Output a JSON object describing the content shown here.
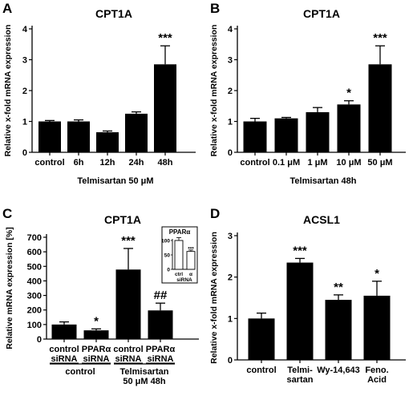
{
  "panels": [
    {
      "letter": "A",
      "chart_data": {
        "type": "bar",
        "title": "CPT1A",
        "ylabel": "Relative x-fold mRNA expression",
        "xlabel": "Telmisartan 50 μM",
        "ylim": [
          0,
          4
        ],
        "yticks": [
          "0",
          "1",
          "2",
          "3",
          "4"
        ],
        "categories": [
          "control",
          "6h",
          "12h",
          "24h",
          "48h"
        ],
        "values": [
          1.0,
          1.0,
          0.65,
          1.25,
          2.85
        ],
        "errors": [
          0.03,
          0.05,
          0.04,
          0.06,
          0.6
        ],
        "annotations": [
          "",
          "",
          "",
          "",
          "***"
        ]
      }
    },
    {
      "letter": "B",
      "chart_data": {
        "type": "bar",
        "title": "CPT1A",
        "ylabel": "Relative x-fold mRNA expression",
        "xlabel": "Telmisartan 48h",
        "ylim": [
          0,
          4
        ],
        "yticks": [
          "0",
          "1",
          "2",
          "3",
          "4"
        ],
        "categories": [
          "control",
          "0.1 μM",
          "1 μM",
          "10 μM",
          "50 μM"
        ],
        "values": [
          1.0,
          1.1,
          1.3,
          1.55,
          2.85
        ],
        "errors": [
          0.1,
          0.03,
          0.15,
          0.12,
          0.6
        ],
        "annotations": [
          "",
          "",
          "",
          "*",
          "***"
        ]
      }
    },
    {
      "letter": "C",
      "chart_data": {
        "type": "bar",
        "title": "CPT1A",
        "ylabel": "Relative mRNA expression [%]",
        "ylim": [
          0,
          700
        ],
        "yticks": [
          "0",
          "100",
          "200",
          "300",
          "400",
          "500",
          "600",
          "700"
        ],
        "categories": [
          [
            "control",
            "siRNA"
          ],
          [
            "PPARα",
            "siRNA"
          ],
          [
            "control",
            "siRNA"
          ],
          [
            "PPARα",
            "siRNA"
          ]
        ],
        "values": [
          100,
          60,
          478,
          197
        ],
        "errors": [
          18,
          10,
          145,
          50
        ],
        "annotations": [
          "",
          "*",
          "***",
          "##"
        ],
        "groups": [
          {
            "label": "control",
            "span": [
              0,
              1
            ]
          },
          {
            "label": "Telmisartan 50 μM 48h",
            "lines": [
              "Telmisartan",
              "50 μM 48h"
            ],
            "span": [
              2,
              3
            ]
          }
        ],
        "inset": {
          "title": "PPARα",
          "ylim": [
            0,
            100
          ],
          "yticks": [
            "0",
            "50",
            "100"
          ],
          "categories": [
            "ctrl",
            "α"
          ],
          "xlabel": "siRNA",
          "values": [
            100,
            62
          ],
          "errors": [
            10,
            5
          ],
          "annotations": [
            "",
            "***"
          ],
          "fill": "white"
        }
      }
    },
    {
      "letter": "D",
      "chart_data": {
        "type": "bar",
        "title": "ACSL1",
        "ylabel": "Relative x-fold mRNA expression",
        "ylim": [
          0,
          3
        ],
        "yticks": [
          "0",
          "1",
          "2",
          "3"
        ],
        "categories": [
          [
            "control"
          ],
          [
            "Telmi-",
            "sartan"
          ],
          [
            "Wy-14,643"
          ],
          [
            "Feno.",
            "Acid"
          ]
        ],
        "values": [
          1.0,
          2.35,
          1.45,
          1.55
        ],
        "errors": [
          0.13,
          0.1,
          0.12,
          0.35
        ],
        "annotations": [
          "",
          "***",
          "**",
          "*"
        ]
      }
    }
  ],
  "colors": {
    "bar": "#000000",
    "axis": "#000000"
  }
}
